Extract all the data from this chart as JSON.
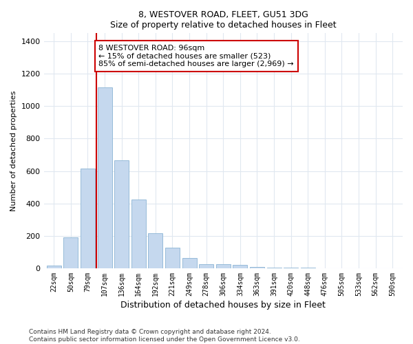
{
  "title1": "8, WESTOVER ROAD, FLEET, GU51 3DG",
  "title2": "Size of property relative to detached houses in Fleet",
  "xlabel": "Distribution of detached houses by size in Fleet",
  "ylabel": "Number of detached properties",
  "categories": [
    "22sqm",
    "50sqm",
    "79sqm",
    "107sqm",
    "136sqm",
    "164sqm",
    "192sqm",
    "221sqm",
    "249sqm",
    "278sqm",
    "306sqm",
    "334sqm",
    "363sqm",
    "391sqm",
    "420sqm",
    "448sqm",
    "476sqm",
    "505sqm",
    "533sqm",
    "562sqm",
    "590sqm"
  ],
  "values": [
    15,
    190,
    615,
    1115,
    665,
    425,
    215,
    125,
    65,
    25,
    25,
    20,
    10,
    5,
    2,
    2,
    1,
    0,
    0,
    0,
    0
  ],
  "bar_color": "#c5d8ee",
  "bar_edge_color": "#8ab4d4",
  "vline_color": "#cc0000",
  "vline_pos": 2.5,
  "annotation_text": "8 WESTOVER ROAD: 96sqm\n← 15% of detached houses are smaller (523)\n85% of semi-detached houses are larger (2,969) →",
  "annotation_box_facecolor": "#ffffff",
  "annotation_box_edgecolor": "#cc0000",
  "ylim_max": 1450,
  "yticks": [
    0,
    200,
    400,
    600,
    800,
    1000,
    1200,
    1400
  ],
  "bg_color": "#ffffff",
  "grid_color": "#e0e8f0",
  "footer1": "Contains HM Land Registry data © Crown copyright and database right 2024.",
  "footer2": "Contains public sector information licensed under the Open Government Licence v3.0."
}
